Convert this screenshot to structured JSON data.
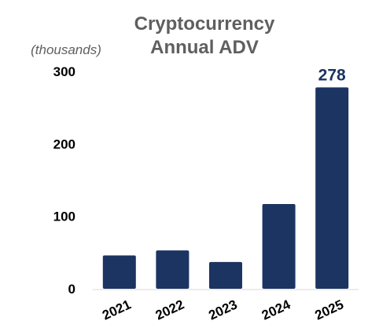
{
  "chart_data": {
    "type": "bar",
    "title": [
      "Cryptocurrency",
      "Annual ADV"
    ],
    "unit_label": "(thousands)",
    "categories": [
      "2021",
      "2022",
      "2023",
      "2024",
      "2025"
    ],
    "values": [
      46,
      53,
      37,
      117,
      278
    ],
    "ylim": [
      0,
      300
    ],
    "yticks": [
      0,
      100,
      200,
      300
    ],
    "data_labels": [
      {
        "category": "2025",
        "text": "278"
      }
    ],
    "grid": false,
    "legend": "none",
    "colors": {
      "bar": "#1c3461",
      "data_label": "#1c3461",
      "title": "#5f5f5f",
      "axis": "#000000"
    }
  }
}
